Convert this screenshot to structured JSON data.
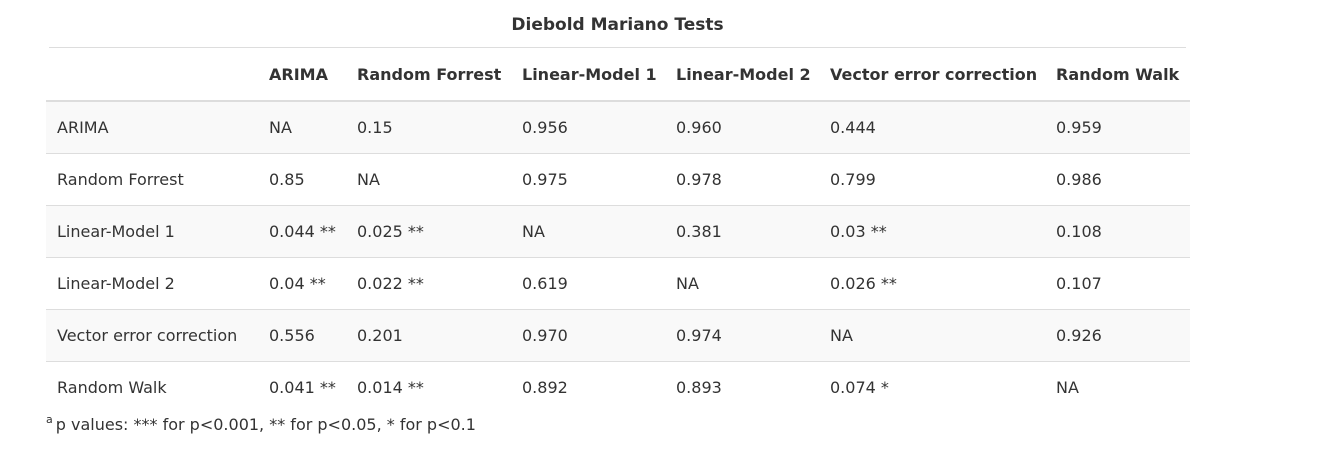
{
  "table": {
    "caption": "Diebold Mariano Tests",
    "columns": [
      "",
      "ARIMA",
      "Random Forrest",
      "Linear-Model 1",
      "Linear-Model 2",
      "Vector error correction",
      "Random Walk"
    ],
    "rows": [
      [
        "ARIMA",
        "NA",
        "0.15",
        "0.956",
        "0.960",
        "0.444",
        "0.959"
      ],
      [
        "Random Forrest",
        "0.85",
        "NA",
        "0.975",
        "0.978",
        "0.799",
        "0.986"
      ],
      [
        "Linear-Model 1",
        "0.044 **",
        "0.025 **",
        "NA",
        "0.381",
        "0.03 **",
        "0.108"
      ],
      [
        "Linear-Model 2",
        "0.04 **",
        "0.022 **",
        "0.619",
        "NA",
        "0.026 **",
        "0.107"
      ],
      [
        "Vector error correction",
        "0.556",
        "0.201",
        "0.970",
        "0.974",
        "NA",
        "0.926"
      ],
      [
        "Random Walk",
        "0.041 **",
        "0.014 **",
        "0.892",
        "0.893",
        "0.074 *",
        "NA"
      ]
    ]
  },
  "footnote": {
    "marker": "a",
    "text": "p values: *** for p<0.001, ** for p<0.05, * for p<0.1"
  }
}
